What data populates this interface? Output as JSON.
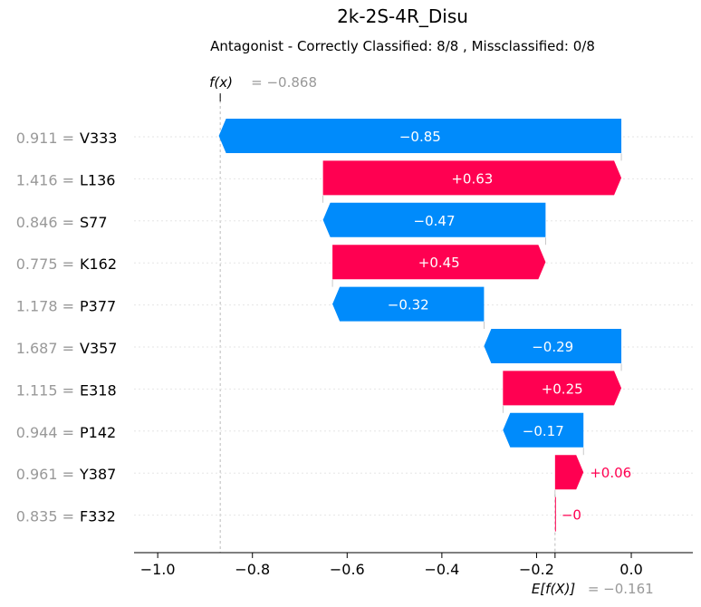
{
  "chart_data": {
    "type": "waterfall",
    "title": "2k-2S-4R_Disu",
    "subtitle": "Antagonist - Correctly Classified: 8/8 , Missclassified: 0/8",
    "fx_label": "f(x)",
    "fx_value": "= −0.868",
    "efx_label": "E[f(X)]",
    "efx_value": "= −0.161",
    "base_value": -0.161,
    "output_value": -0.868,
    "xlim": [
      -1.05,
      0.13
    ],
    "xticks": [
      {
        "value": -1.0,
        "label": "−1.0"
      },
      {
        "value": -0.8,
        "label": "−0.8"
      },
      {
        "value": -0.6,
        "label": "−0.6"
      },
      {
        "value": -0.4,
        "label": "−0.4"
      },
      {
        "value": -0.2,
        "label": "−0.2"
      },
      {
        "value": 0.0,
        "label": "0.0"
      }
    ],
    "features": [
      {
        "feature": "V333",
        "feature_value": "0.911",
        "contribution": -0.85,
        "label": "−0.85"
      },
      {
        "feature": "L136",
        "feature_value": "1.416",
        "contribution": 0.63,
        "label": "+0.63"
      },
      {
        "feature": "S77",
        "feature_value": "0.846",
        "contribution": -0.47,
        "label": "−0.47"
      },
      {
        "feature": "K162",
        "feature_value": "0.775",
        "contribution": 0.45,
        "label": "+0.45"
      },
      {
        "feature": "P377",
        "feature_value": "1.178",
        "contribution": -0.32,
        "label": "−0.32"
      },
      {
        "feature": "V357",
        "feature_value": "1.687",
        "contribution": -0.29,
        "label": "−0.29"
      },
      {
        "feature": "E318",
        "feature_value": "1.115",
        "contribution": 0.25,
        "label": "+0.25"
      },
      {
        "feature": "P142",
        "feature_value": "0.944",
        "contribution": -0.17,
        "label": "−0.17"
      },
      {
        "feature": "Y387",
        "feature_value": "0.961",
        "contribution": 0.06,
        "label": "+0.06"
      },
      {
        "feature": "F332",
        "feature_value": "0.835",
        "contribution": 0.0,
        "label": "−0"
      }
    ],
    "colors": {
      "positive": "#ff0051",
      "negative": "#008bfb",
      "feature_value_text": "#999999",
      "feature_name_text": "#000000"
    }
  }
}
